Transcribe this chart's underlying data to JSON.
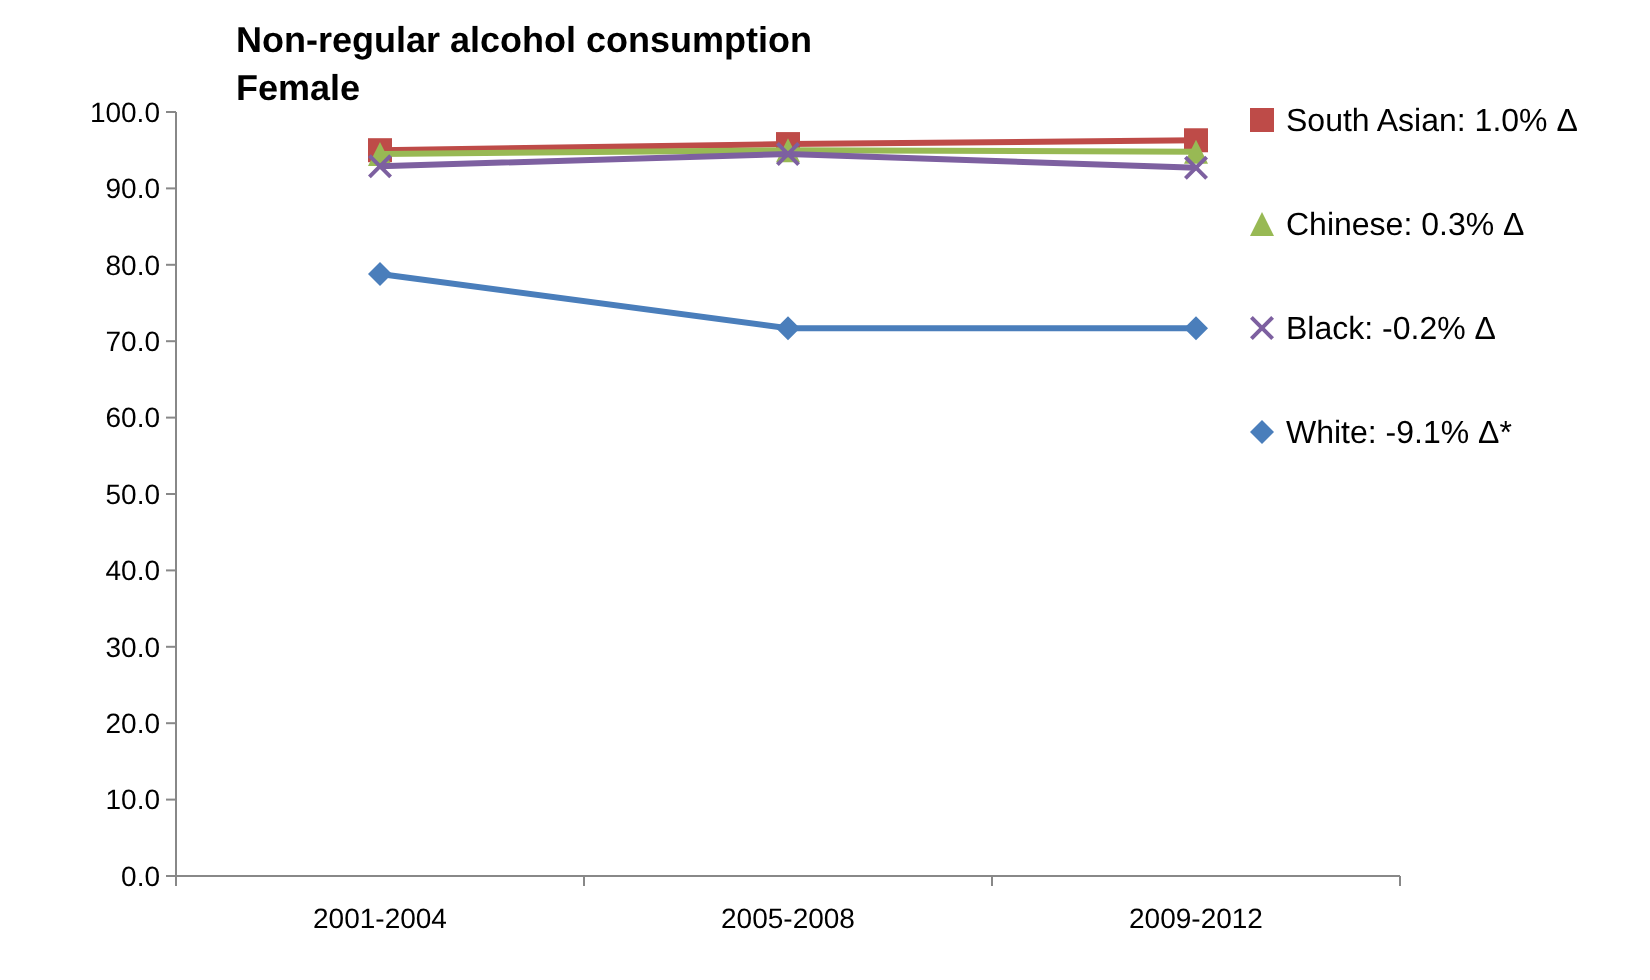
{
  "chart_data": {
    "type": "line",
    "title": "Non-regular alcohol consumption\nFemale",
    "categories": [
      "2001-2004",
      "2005-2008",
      "2009-2012"
    ],
    "series": [
      {
        "name": "White: -9.1% Δ*",
        "color": "#4a7ebb",
        "marker": "diamond",
        "values": [
          78.8,
          71.7,
          71.7
        ]
      },
      {
        "name": "South Asian:  1.0% Δ",
        "color": "#be4b48",
        "marker": "square",
        "values": [
          95.0,
          95.8,
          96.3
        ]
      },
      {
        "name": "Chinese:  0.3% Δ",
        "color": "#98b954",
        "marker": "triangle",
        "values": [
          94.5,
          95.0,
          94.8
        ]
      },
      {
        "name": "Black: -0.2% Δ",
        "color": "#7d60a0",
        "marker": "cross",
        "values": [
          92.9,
          94.5,
          92.7
        ]
      }
    ],
    "ylim": [
      0,
      100
    ],
    "yticks": [
      {
        "value": 0,
        "label": "0.0"
      },
      {
        "value": 10,
        "label": "10.0"
      },
      {
        "value": 20,
        "label": "20.0"
      },
      {
        "value": 30,
        "label": "30.0"
      },
      {
        "value": 40,
        "label": "40.0"
      },
      {
        "value": 50,
        "label": "50.0"
      },
      {
        "value": 60,
        "label": "60.0"
      },
      {
        "value": 70,
        "label": "70.0"
      },
      {
        "value": 80,
        "label": "80.0"
      },
      {
        "value": 90,
        "label": "90.0"
      },
      {
        "value": 100,
        "label": "100.0"
      }
    ],
    "legend": "right",
    "grid": false
  }
}
